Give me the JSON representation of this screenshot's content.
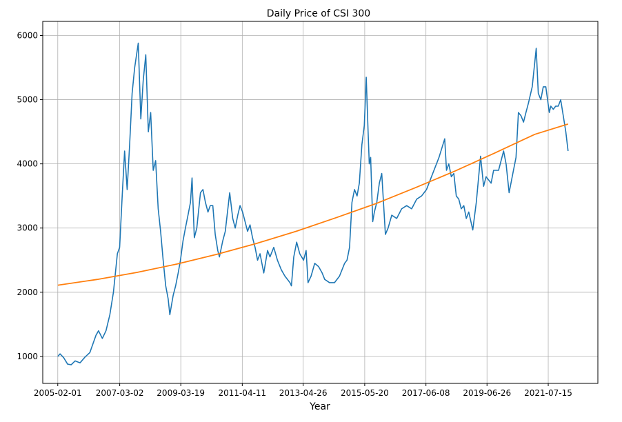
{
  "chart_data": {
    "type": "line",
    "title": "Daily Price of CSI 300",
    "xlabel": "Year",
    "ylabel": "",
    "x_ticks": [
      "2005-02-01",
      "2007-03-02",
      "2009-03-19",
      "2011-04-11",
      "2013-04-26",
      "2015-05-20",
      "2017-06-08",
      "2019-06-26",
      "2021-07-15"
    ],
    "y_ticks": [
      1000,
      2000,
      3000,
      4000,
      5000,
      6000
    ],
    "xlim": [
      "2004-08-01",
      "2023-03-15"
    ],
    "ylim": [
      580,
      6220
    ],
    "grid": true,
    "colors": {
      "price": "#1f77b4",
      "trend": "#ff7f0e"
    },
    "series": [
      {
        "points": [
          [
            "2005-02-01",
            1000
          ],
          [
            "2005-03-01",
            1040
          ],
          [
            "2005-04-15",
            980
          ],
          [
            "2005-06-01",
            880
          ],
          [
            "2005-07-15",
            870
          ],
          [
            "2005-09-01",
            930
          ],
          [
            "2005-11-01",
            900
          ],
          [
            "2006-01-01",
            990
          ],
          [
            "2006-03-01",
            1060
          ],
          [
            "2006-05-15",
            1330
          ],
          [
            "2006-06-15",
            1400
          ],
          [
            "2006-08-01",
            1280
          ],
          [
            "2006-09-15",
            1400
          ],
          [
            "2006-11-01",
            1650
          ],
          [
            "2006-12-15",
            2000
          ],
          [
            "2007-02-01",
            2600
          ],
          [
            "2007-03-01",
            2700
          ],
          [
            "2007-04-01",
            3500
          ],
          [
            "2007-05-01",
            4200
          ],
          [
            "2007-06-01",
            3600
          ],
          [
            "2007-07-01",
            4300
          ],
          [
            "2007-08-01",
            5100
          ],
          [
            "2007-09-01",
            5500
          ],
          [
            "2007-10-15",
            5880
          ],
          [
            "2007-11-15",
            4700
          ],
          [
            "2007-12-15",
            5300
          ],
          [
            "2008-01-15",
            5700
          ],
          [
            "2008-02-15",
            4500
          ],
          [
            "2008-03-15",
            4800
          ],
          [
            "2008-04-15",
            3900
          ],
          [
            "2008-05-15",
            4050
          ],
          [
            "2008-06-15",
            3300
          ],
          [
            "2008-07-15",
            2950
          ],
          [
            "2008-08-15",
            2500
          ],
          [
            "2008-09-15",
            2100
          ],
          [
            "2008-10-15",
            1900
          ],
          [
            "2008-11-05",
            1650
          ],
          [
            "2008-12-15",
            1950
          ],
          [
            "2009-01-15",
            2100
          ],
          [
            "2009-02-15",
            2300
          ],
          [
            "2009-03-15",
            2500
          ],
          [
            "2009-04-15",
            2800
          ],
          [
            "2009-05-15",
            3000
          ],
          [
            "2009-06-15",
            3200
          ],
          [
            "2009-07-15",
            3400
          ],
          [
            "2009-08-04",
            3780
          ],
          [
            "2009-09-01",
            2850
          ],
          [
            "2009-10-01",
            3000
          ],
          [
            "2009-11-15",
            3550
          ],
          [
            "2009-12-15",
            3600
          ],
          [
            "2010-01-15",
            3400
          ],
          [
            "2010-02-15",
            3250
          ],
          [
            "2010-03-15",
            3350
          ],
          [
            "2010-04-15",
            3350
          ],
          [
            "2010-05-15",
            2900
          ],
          [
            "2010-06-15",
            2650
          ],
          [
            "2010-07-05",
            2550
          ],
          [
            "2010-08-15",
            2800
          ],
          [
            "2010-09-15",
            2950
          ],
          [
            "2010-11-08",
            3550
          ],
          [
            "2010-12-15",
            3150
          ],
          [
            "2011-01-15",
            3000
          ],
          [
            "2011-02-15",
            3200
          ],
          [
            "2011-03-15",
            3350
          ],
          [
            "2011-04-15",
            3250
          ],
          [
            "2011-05-15",
            3100
          ],
          [
            "2011-06-15",
            2950
          ],
          [
            "2011-07-15",
            3050
          ],
          [
            "2011-08-15",
            2850
          ],
          [
            "2011-09-15",
            2700
          ],
          [
            "2011-10-15",
            2500
          ],
          [
            "2011-11-15",
            2600
          ],
          [
            "2011-12-30",
            2300
          ],
          [
            "2012-02-15",
            2650
          ],
          [
            "2012-03-15",
            2550
          ],
          [
            "2012-05-01",
            2700
          ],
          [
            "2012-06-15",
            2500
          ],
          [
            "2012-08-01",
            2350
          ],
          [
            "2012-09-15",
            2250
          ],
          [
            "2012-11-15",
            2150
          ],
          [
            "2012-12-03",
            2100
          ],
          [
            "2013-01-01",
            2550
          ],
          [
            "2013-02-05",
            2780
          ],
          [
            "2013-03-15",
            2600
          ],
          [
            "2013-05-01",
            2500
          ],
          [
            "2013-06-01",
            2650
          ],
          [
            "2013-06-25",
            2150
          ],
          [
            "2013-08-01",
            2250
          ],
          [
            "2013-09-15",
            2450
          ],
          [
            "2013-11-01",
            2400
          ],
          [
            "2013-12-15",
            2300
          ],
          [
            "2014-01-15",
            2200
          ],
          [
            "2014-03-15",
            2150
          ],
          [
            "2014-05-15",
            2150
          ],
          [
            "2014-07-15",
            2250
          ],
          [
            "2014-09-15",
            2450
          ],
          [
            "2014-10-15",
            2500
          ],
          [
            "2014-11-15",
            2700
          ],
          [
            "2014-12-15",
            3400
          ],
          [
            "2015-01-15",
            3600
          ],
          [
            "2015-02-15",
            3500
          ],
          [
            "2015-03-15",
            3700
          ],
          [
            "2015-04-15",
            4300
          ],
          [
            "2015-05-15",
            4600
          ],
          [
            "2015-06-08",
            5350
          ],
          [
            "2015-06-30",
            4500
          ],
          [
            "2015-07-15",
            4000
          ],
          [
            "2015-08-01",
            4100
          ],
          [
            "2015-08-26",
            3100
          ],
          [
            "2015-09-15",
            3250
          ],
          [
            "2015-10-15",
            3400
          ],
          [
            "2015-11-15",
            3700
          ],
          [
            "2015-12-15",
            3850
          ],
          [
            "2016-01-28",
            2900
          ],
          [
            "2016-03-01",
            3000
          ],
          [
            "2016-04-15",
            3200
          ],
          [
            "2016-06-15",
            3150
          ],
          [
            "2016-08-15",
            3300
          ],
          [
            "2016-10-15",
            3350
          ],
          [
            "2016-12-15",
            3300
          ],
          [
            "2017-02-15",
            3450
          ],
          [
            "2017-04-15",
            3500
          ],
          [
            "2017-06-15",
            3600
          ],
          [
            "2017-08-15",
            3800
          ],
          [
            "2017-10-15",
            4000
          ],
          [
            "2017-11-15",
            4100
          ],
          [
            "2018-01-24",
            4390
          ],
          [
            "2018-02-15",
            3900
          ],
          [
            "2018-03-15",
            4000
          ],
          [
            "2018-04-15",
            3800
          ],
          [
            "2018-05-15",
            3850
          ],
          [
            "2018-06-15",
            3500
          ],
          [
            "2018-07-15",
            3450
          ],
          [
            "2018-08-15",
            3300
          ],
          [
            "2018-09-15",
            3350
          ],
          [
            "2018-10-15",
            3150
          ],
          [
            "2018-11-15",
            3250
          ],
          [
            "2019-01-03",
            2970
          ],
          [
            "2019-02-15",
            3400
          ],
          [
            "2019-04-08",
            4120
          ],
          [
            "2019-05-15",
            3650
          ],
          [
            "2019-06-15",
            3800
          ],
          [
            "2019-08-15",
            3700
          ],
          [
            "2019-09-15",
            3900
          ],
          [
            "2019-11-15",
            3900
          ],
          [
            "2020-01-15",
            4200
          ],
          [
            "2020-02-15",
            4000
          ],
          [
            "2020-03-23",
            3550
          ],
          [
            "2020-05-15",
            3900
          ],
          [
            "2020-06-15",
            4100
          ],
          [
            "2020-07-15",
            4800
          ],
          [
            "2020-08-15",
            4750
          ],
          [
            "2020-09-15",
            4650
          ],
          [
            "2020-10-15",
            4800
          ],
          [
            "2020-11-15",
            4950
          ],
          [
            "2020-12-31",
            5200
          ],
          [
            "2021-02-18",
            5800
          ],
          [
            "2021-03-15",
            5100
          ],
          [
            "2021-04-15",
            5000
          ],
          [
            "2021-05-15",
            5200
          ],
          [
            "2021-06-15",
            5200
          ],
          [
            "2021-07-28",
            4800
          ],
          [
            "2021-08-15",
            4900
          ],
          [
            "2021-09-15",
            4850
          ],
          [
            "2021-10-15",
            4900
          ],
          [
            "2021-11-15",
            4900
          ],
          [
            "2021-12-15",
            5000
          ],
          [
            "2022-01-15",
            4750
          ],
          [
            "2022-02-15",
            4500
          ],
          [
            "2022-03-15",
            4200
          ]
        ]
      },
      {
        "points": [
          [
            "2005-02-01",
            2110
          ],
          [
            "2006-06-01",
            2200
          ],
          [
            "2007-10-01",
            2310
          ],
          [
            "2009-02-01",
            2440
          ],
          [
            "2010-06-01",
            2590
          ],
          [
            "2011-10-01",
            2760
          ],
          [
            "2013-02-01",
            2950
          ],
          [
            "2014-06-01",
            3160
          ],
          [
            "2015-10-01",
            3380
          ],
          [
            "2017-02-01",
            3630
          ],
          [
            "2018-06-01",
            3890
          ],
          [
            "2019-10-01",
            4170
          ],
          [
            "2021-02-01",
            4460
          ],
          [
            "2022-03-15",
            4620
          ]
        ]
      }
    ]
  }
}
